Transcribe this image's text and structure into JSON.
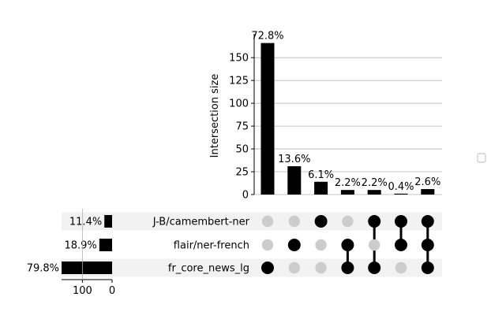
{
  "chart_data": {
    "type": "bar",
    "subtype": "upset",
    "ylabel": "Intersection size",
    "ylim": [
      0,
      170
    ],
    "yticks": [
      0,
      25,
      50,
      75,
      100,
      125,
      150
    ],
    "grid": true,
    "sets": [
      {
        "name": "J-B/camembert-ner",
        "pct_label": "11.4%",
        "size": 26
      },
      {
        "name": "flair/ner-french",
        "pct_label": "18.9%",
        "size": 43
      },
      {
        "name": "fr_core_news_lg",
        "pct_label": "79.8%",
        "size": 182
      }
    ],
    "set_size_ticks": [
      100,
      0
    ],
    "set_size_xlim": [
      170,
      0
    ],
    "intersections": [
      {
        "members": [
          "fr_core_news_lg"
        ],
        "value": 166,
        "label": "72.8%"
      },
      {
        "members": [
          "flair/ner-french"
        ],
        "value": 31,
        "label": "13.6%"
      },
      {
        "members": [
          "J-B/camembert-ner"
        ],
        "value": 14,
        "label": "6.1%"
      },
      {
        "members": [
          "flair/ner-french",
          "fr_core_news_lg"
        ],
        "value": 5,
        "label": "2.2%"
      },
      {
        "members": [
          "J-B/camembert-ner",
          "fr_core_news_lg"
        ],
        "value": 5,
        "label": "2.2%"
      },
      {
        "members": [
          "J-B/camembert-ner",
          "flair/ner-french"
        ],
        "value": 1,
        "label": "0.4%"
      },
      {
        "members": [
          "J-B/camembert-ner",
          "flair/ner-french",
          "fr_core_news_lg"
        ],
        "value": 6,
        "label": "2.6%"
      }
    ]
  }
}
